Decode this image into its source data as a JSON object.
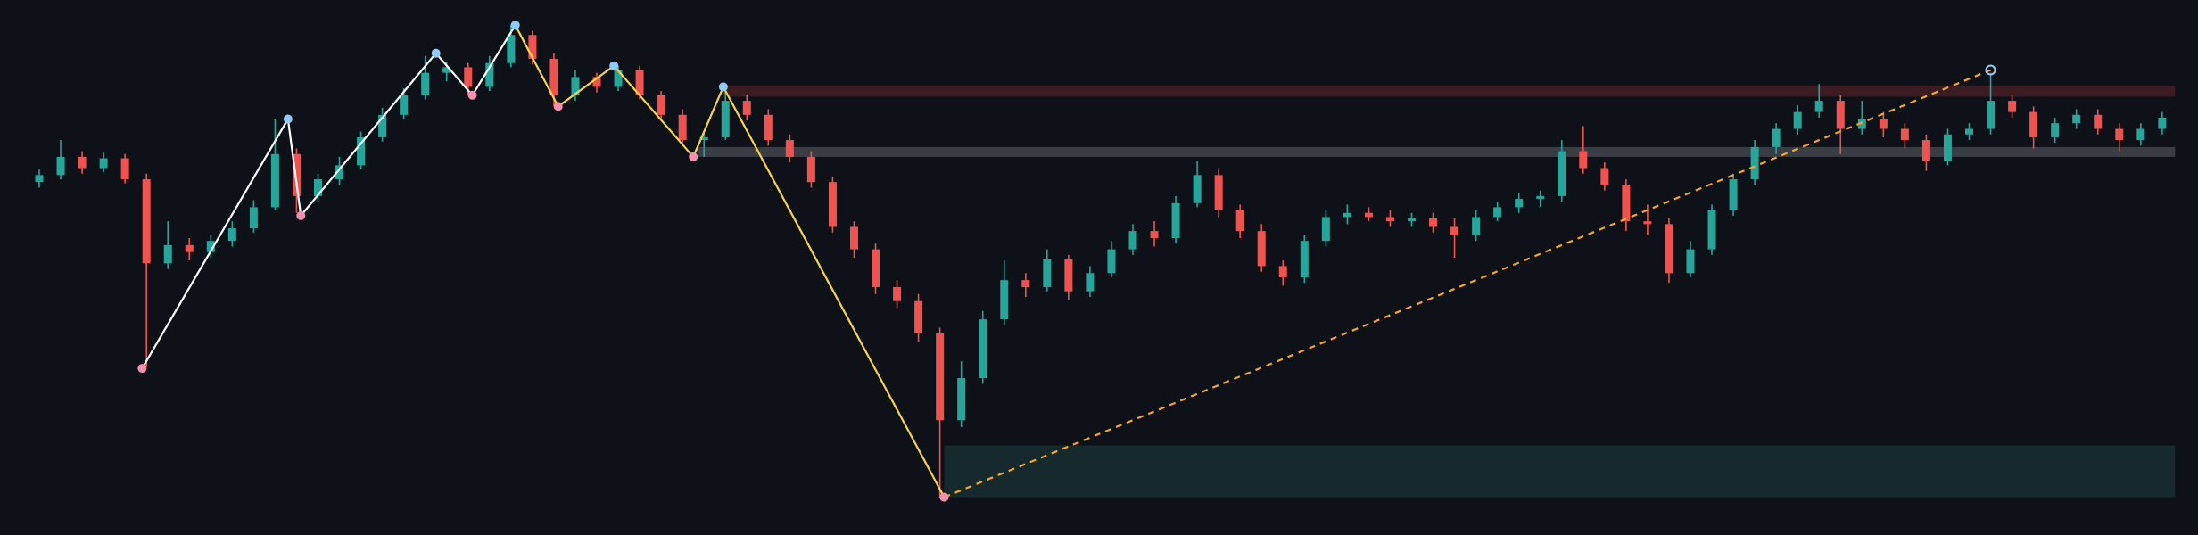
{
  "chart_data": {
    "type": "candlestick",
    "open": [
      252,
      257,
      270,
      262,
      269,
      254,
      194,
      207,
      202,
      210,
      219,
      234,
      272,
      242,
      254,
      264,
      284,
      300,
      314,
      330,
      334,
      320,
      337,
      357,
      340,
      314,
      327,
      320,
      332,
      314,
      300,
      282,
      284,
      310,
      300,
      282,
      270,
      252,
      220,
      204,
      177,
      167,
      144,
      82,
      112,
      154,
      182,
      177,
      197,
      174,
      187,
      204,
      217,
      212,
      237,
      257,
      232,
      217,
      192,
      184,
      210,
      227,
      230,
      227,
      224,
      226,
      220,
      214,
      227,
      234,
      240,
      242,
      274,
      262,
      250,
      224,
      222,
      187,
      204,
      232,
      254,
      277,
      290,
      302,
      310,
      290,
      297,
      290,
      282,
      267,
      286,
      290,
      310,
      302,
      284,
      294,
      300,
      290,
      282,
      290
    ],
    "high": [
      261,
      282,
      274,
      273,
      272,
      258,
      224,
      212,
      214,
      224,
      239,
      297,
      276,
      258,
      270,
      288,
      305,
      319,
      342,
      338,
      337,
      342,
      364,
      360,
      344,
      332,
      330,
      335,
      335,
      317,
      304,
      288,
      320,
      314,
      304,
      286,
      274,
      256,
      224,
      208,
      182,
      172,
      148,
      124,
      160,
      196,
      187,
      204,
      200,
      192,
      210,
      222,
      224,
      242,
      267,
      262,
      236,
      222,
      196,
      214,
      232,
      236,
      234,
      232,
      230,
      230,
      226,
      232,
      238,
      244,
      246,
      282,
      292,
      266,
      254,
      236,
      226,
      210,
      236,
      258,
      282,
      294,
      307,
      322,
      314,
      310,
      302,
      294,
      286,
      290,
      294,
      330,
      314,
      306,
      298,
      304,
      304,
      294,
      294,
      302
    ],
    "low": [
      248,
      254,
      258,
      259,
      251,
      120,
      190,
      196,
      198,
      206,
      216,
      232,
      230,
      238,
      250,
      261,
      281,
      297,
      311,
      324,
      314,
      317,
      334,
      336,
      306,
      310,
      316,
      317,
      311,
      296,
      278,
      270,
      282,
      296,
      278,
      266,
      248,
      216,
      198,
      172,
      162,
      138,
      27,
      77,
      108,
      150,
      170,
      174,
      168,
      170,
      184,
      200,
      206,
      208,
      234,
      227,
      212,
      188,
      178,
      180,
      206,
      222,
      224,
      220,
      220,
      216,
      198,
      210,
      224,
      230,
      234,
      238,
      258,
      246,
      217,
      214,
      180,
      184,
      200,
      228,
      250,
      272,
      286,
      298,
      272,
      286,
      284,
      276,
      260,
      264,
      282,
      286,
      298,
      276,
      280,
      290,
      286,
      274,
      278,
      286
    ],
    "close": [
      257,
      270,
      262,
      269,
      254,
      194,
      207,
      202,
      210,
      219,
      234,
      272,
      242,
      254,
      264,
      284,
      300,
      314,
      330,
      334,
      320,
      337,
      357,
      340,
      314,
      327,
      320,
      332,
      314,
      300,
      282,
      284,
      310,
      300,
      282,
      270,
      252,
      220,
      204,
      177,
      167,
      144,
      82,
      112,
      154,
      182,
      177,
      197,
      174,
      187,
      204,
      217,
      212,
      237,
      257,
      232,
      217,
      192,
      184,
      210,
      227,
      230,
      227,
      224,
      226,
      220,
      214,
      227,
      234,
      240,
      242,
      274,
      262,
      250,
      224,
      222,
      187,
      204,
      232,
      254,
      277,
      290,
      302,
      310,
      290,
      297,
      290,
      282,
      267,
      286,
      290,
      310,
      302,
      284,
      294,
      300,
      290,
      282,
      290,
      298
    ],
    "up_color": "#26a69a",
    "down_color": "#ef5350",
    "xlim": [
      -1.83,
      100.67
    ],
    "ylim": [
      0,
      382
    ],
    "grid": false,
    "zones": [
      {
        "color": "#3a1c22",
        "x": [
          31.9,
          99.6
        ],
        "y": [
          313,
          321
        ]
      },
      {
        "color": "#3b3d44",
        "x": [
          30.7,
          99.6
        ],
        "y": [
          270,
          277
        ]
      },
      {
        "color": "#16292d",
        "x": [
          42.2,
          99.6
        ],
        "y": [
          27,
          64
        ]
      }
    ],
    "lines": [
      {
        "color": "#ffffff",
        "dashed": false,
        "x": [
          4.8,
          11.6,
          12.2,
          18.5,
          20.2,
          22.2
        ],
        "y": [
          119,
          297,
          228,
          344,
          314,
          364
        ]
      },
      {
        "color": "#f5d44a",
        "dashed": false,
        "x": [
          22.2,
          24.2,
          26.8,
          30.5,
          31.9,
          42.2
        ],
        "y": [
          364,
          306,
          335,
          270,
          320,
          27
        ]
      },
      {
        "color": "#f5a623",
        "dashed": true,
        "x": [
          42.2,
          91.0
        ],
        "y": [
          27,
          332
        ]
      }
    ]
  }
}
